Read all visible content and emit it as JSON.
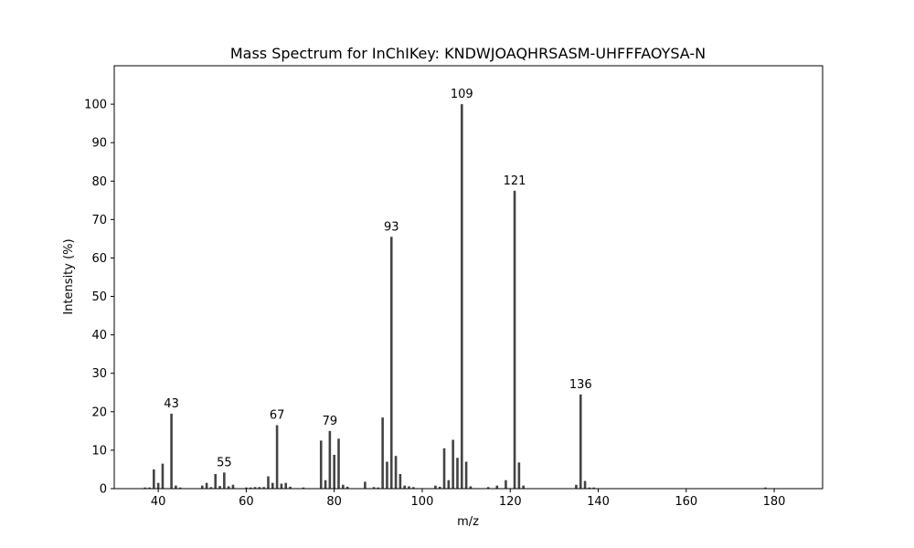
{
  "chart_data": {
    "type": "bar",
    "title": "Mass Spectrum for InChIKey: KNDWJOAQHRSASM-UHFFFAOYSA-N",
    "xlabel": "m/z",
    "ylabel": "Intensity (%)",
    "xlim": [
      30,
      191
    ],
    "ylim": [
      0,
      110
    ],
    "xticks": [
      40,
      60,
      80,
      100,
      120,
      140,
      160,
      180
    ],
    "yticks": [
      0,
      10,
      20,
      30,
      40,
      50,
      60,
      70,
      80,
      90,
      100
    ],
    "grid": false,
    "bar_color": "#444444",
    "peaks": [
      {
        "mz": 37,
        "intensity": 0.3
      },
      {
        "mz": 38,
        "intensity": 0.3
      },
      {
        "mz": 39,
        "intensity": 5.0
      },
      {
        "mz": 40,
        "intensity": 1.5
      },
      {
        "mz": 41,
        "intensity": 6.5
      },
      {
        "mz": 43,
        "intensity": 19.5,
        "label": "43"
      },
      {
        "mz": 44,
        "intensity": 0.8
      },
      {
        "mz": 45,
        "intensity": 0.3
      },
      {
        "mz": 50,
        "intensity": 0.8
      },
      {
        "mz": 51,
        "intensity": 1.5
      },
      {
        "mz": 52,
        "intensity": 0.4
      },
      {
        "mz": 53,
        "intensity": 3.8
      },
      {
        "mz": 54,
        "intensity": 0.7
      },
      {
        "mz": 55,
        "intensity": 4.2,
        "label": "55"
      },
      {
        "mz": 56,
        "intensity": 0.6
      },
      {
        "mz": 57,
        "intensity": 1.0
      },
      {
        "mz": 60,
        "intensity": 0.3
      },
      {
        "mz": 61,
        "intensity": 0.3
      },
      {
        "mz": 62,
        "intensity": 0.4
      },
      {
        "mz": 63,
        "intensity": 0.4
      },
      {
        "mz": 64,
        "intensity": 0.4
      },
      {
        "mz": 65,
        "intensity": 3.2
      },
      {
        "mz": 66,
        "intensity": 1.5
      },
      {
        "mz": 67,
        "intensity": 16.5,
        "label": "67"
      },
      {
        "mz": 68,
        "intensity": 1.3
      },
      {
        "mz": 69,
        "intensity": 1.5
      },
      {
        "mz": 70,
        "intensity": 0.5
      },
      {
        "mz": 73,
        "intensity": 0.3
      },
      {
        "mz": 77,
        "intensity": 12.5
      },
      {
        "mz": 78,
        "intensity": 2.2
      },
      {
        "mz": 79,
        "intensity": 15.0,
        "label": "79"
      },
      {
        "mz": 80,
        "intensity": 8.8
      },
      {
        "mz": 81,
        "intensity": 13.0
      },
      {
        "mz": 82,
        "intensity": 1.0
      },
      {
        "mz": 83,
        "intensity": 0.5
      },
      {
        "mz": 87,
        "intensity": 1.8
      },
      {
        "mz": 89,
        "intensity": 0.4
      },
      {
        "mz": 90,
        "intensity": 0.3
      },
      {
        "mz": 91,
        "intensity": 18.5
      },
      {
        "mz": 92,
        "intensity": 7.0
      },
      {
        "mz": 93,
        "intensity": 65.5,
        "label": "93"
      },
      {
        "mz": 94,
        "intensity": 8.5
      },
      {
        "mz": 95,
        "intensity": 3.8
      },
      {
        "mz": 96,
        "intensity": 0.8
      },
      {
        "mz": 97,
        "intensity": 0.6
      },
      {
        "mz": 98,
        "intensity": 0.4
      },
      {
        "mz": 103,
        "intensity": 0.8
      },
      {
        "mz": 104,
        "intensity": 0.5
      },
      {
        "mz": 105,
        "intensity": 10.5
      },
      {
        "mz": 106,
        "intensity": 2.2
      },
      {
        "mz": 107,
        "intensity": 12.7
      },
      {
        "mz": 108,
        "intensity": 8.0
      },
      {
        "mz": 109,
        "intensity": 100,
        "label": "109"
      },
      {
        "mz": 110,
        "intensity": 7.0
      },
      {
        "mz": 111,
        "intensity": 0.6
      },
      {
        "mz": 115,
        "intensity": 0.4
      },
      {
        "mz": 117,
        "intensity": 0.8
      },
      {
        "mz": 119,
        "intensity": 2.2
      },
      {
        "mz": 121,
        "intensity": 77.5,
        "label": "121"
      },
      {
        "mz": 122,
        "intensity": 6.8
      },
      {
        "mz": 123,
        "intensity": 0.8
      },
      {
        "mz": 135,
        "intensity": 1.0
      },
      {
        "mz": 136,
        "intensity": 24.5,
        "label": "136"
      },
      {
        "mz": 137,
        "intensity": 2.0
      },
      {
        "mz": 138,
        "intensity": 0.3
      },
      {
        "mz": 139,
        "intensity": 0.3
      },
      {
        "mz": 178,
        "intensity": 0.3
      }
    ]
  }
}
